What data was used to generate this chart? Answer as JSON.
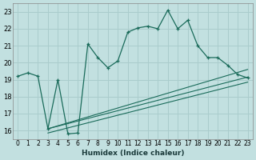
{
  "xlabel": "Humidex (Indice chaleur)",
  "bg_color": "#c2e0e0",
  "grid_color": "#aacccc",
  "line_color": "#1a6b5a",
  "xlim": [
    -0.5,
    23.5
  ],
  "ylim": [
    15.5,
    23.5
  ],
  "xticks": [
    0,
    1,
    2,
    3,
    4,
    5,
    6,
    7,
    8,
    9,
    10,
    11,
    12,
    13,
    14,
    15,
    16,
    17,
    18,
    19,
    20,
    21,
    22,
    23
  ],
  "yticks": [
    16,
    17,
    18,
    19,
    20,
    21,
    22,
    23
  ],
  "main_line_x": [
    0,
    1,
    2,
    3,
    4,
    5,
    6,
    7,
    8,
    9,
    10,
    11,
    12,
    13,
    14,
    15,
    16,
    17,
    18,
    19,
    20,
    21,
    22,
    23
  ],
  "main_line_y": [
    19.2,
    19.4,
    19.2,
    16.1,
    19.0,
    15.8,
    15.85,
    21.1,
    20.3,
    19.7,
    20.1,
    21.8,
    22.05,
    22.15,
    22.0,
    23.1,
    22.0,
    22.5,
    21.0,
    20.3,
    20.3,
    19.85,
    19.3,
    19.1
  ],
  "line2_x": [
    3,
    23
  ],
  "line2_y": [
    16.1,
    19.15
  ],
  "line3_x": [
    3,
    23
  ],
  "line3_y": [
    15.85,
    18.85
  ],
  "line4_x": [
    3,
    23
  ],
  "line4_y": [
    16.1,
    19.6
  ]
}
